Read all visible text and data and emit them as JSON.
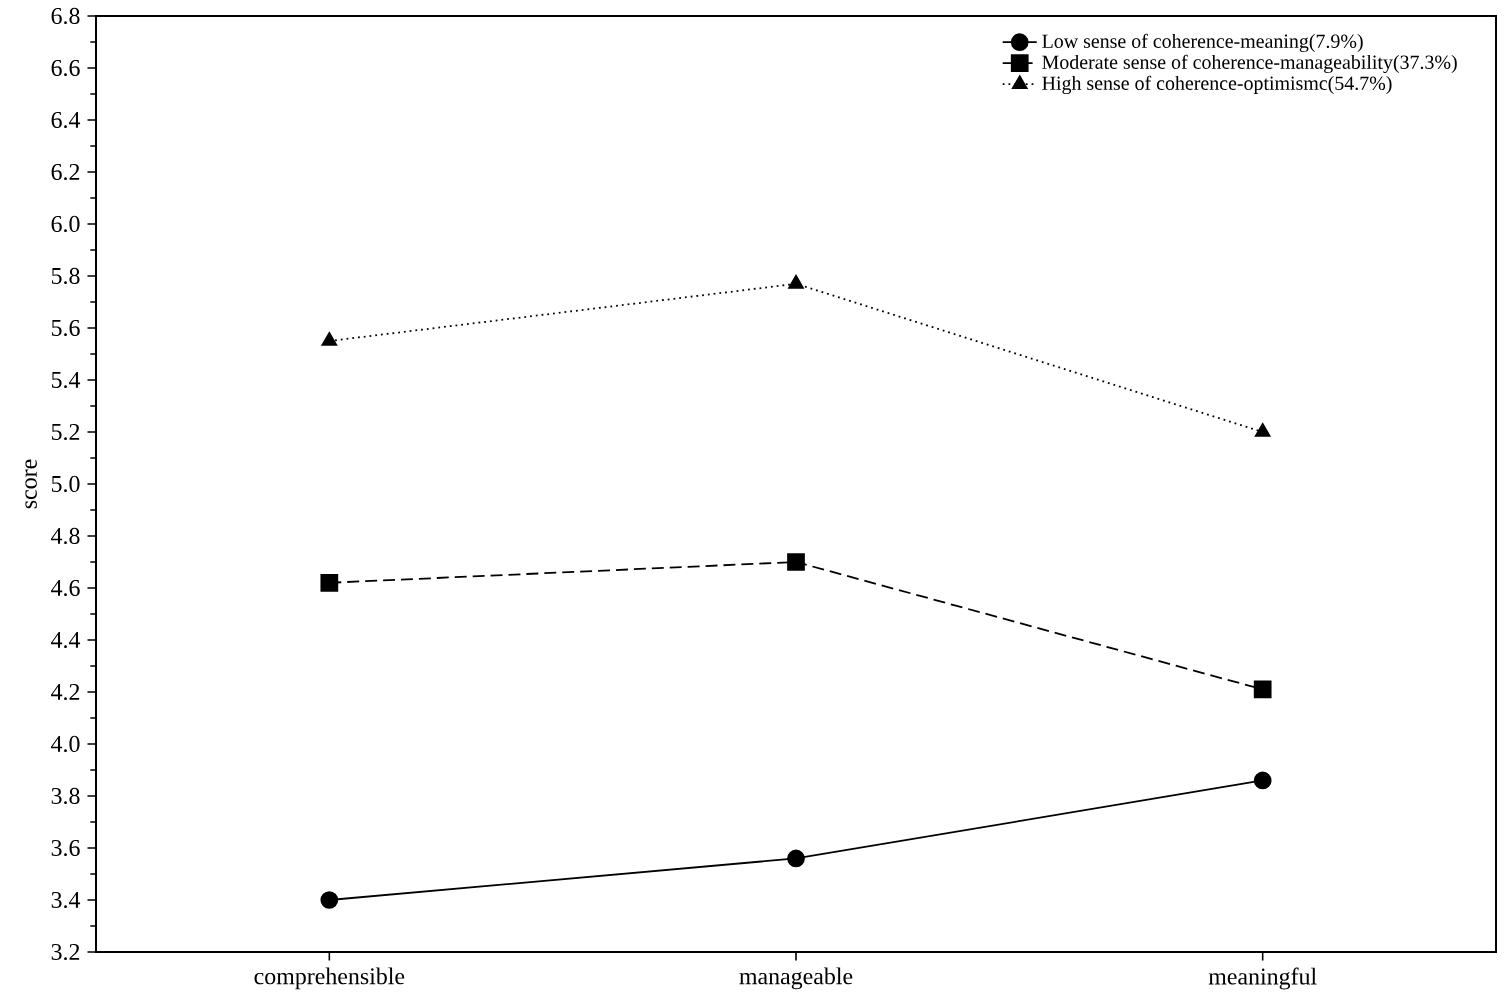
{
  "chart_data": {
    "type": "line",
    "ylabel": "score",
    "categories": [
      "comprehensible",
      "manageable",
      "meaningful"
    ],
    "series": [
      {
        "name": "Low sense of coherence-meaning(7.9%)",
        "color": "#000000",
        "marker": "circle",
        "line_style": "solid",
        "values": [
          3.4,
          3.56,
          3.86
        ]
      },
      {
        "name": "Moderate sense of coherence-manageability(37.3%)",
        "color": "#000000",
        "marker": "square",
        "line_style": "dashed",
        "values": [
          4.62,
          4.7,
          4.21
        ]
      },
      {
        "name": "High sense of coherence-optimismc(54.7%)",
        "color": "#000000",
        "marker": "triangle",
        "line_style": "dotted",
        "values": [
          5.55,
          5.77,
          5.2
        ]
      }
    ],
    "ylim": [
      3.2,
      6.8
    ],
    "yticks": [
      3.2,
      3.4,
      3.6,
      3.8,
      {
        "value": 4.0,
        "label": "4.0"
      },
      4.2,
      4.4,
      4.6,
      4.8,
      {
        "value": 5.0,
        "label": "5.0"
      },
      5.2,
      5.4,
      5.6,
      5.8,
      {
        "value": 6.0,
        "label": "6.0"
      },
      6.2,
      6.4,
      6.6,
      6.8
    ],
    "legend": "top right",
    "grid": false
  }
}
